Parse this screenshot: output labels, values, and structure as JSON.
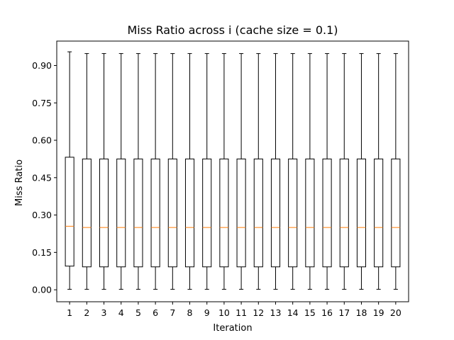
{
  "chart_data": {
    "type": "boxplot",
    "title": "Miss Ratio across i (cache size = 0.1)",
    "xlabel": "Iteration",
    "ylabel": "Miss Ratio",
    "categories": [
      "1",
      "2",
      "3",
      "4",
      "5",
      "6",
      "7",
      "8",
      "9",
      "10",
      "11",
      "12",
      "13",
      "14",
      "15",
      "16",
      "17",
      "18",
      "19",
      "20"
    ],
    "yticks": [
      "0.00",
      "0.15",
      "0.30",
      "0.45",
      "0.60",
      "0.75",
      "0.90"
    ],
    "ylim": [
      -0.048,
      0.998
    ],
    "grid": false,
    "colors": {
      "box": "#000000",
      "median": "#ff7f0e",
      "background": "#ffffff"
    },
    "boxes": [
      {
        "label": "1",
        "whislo": 0.002,
        "q1": 0.095,
        "med": 0.255,
        "q3": 0.532,
        "whishi": 0.955
      },
      {
        "label": "2",
        "whislo": 0.002,
        "q1": 0.092,
        "med": 0.25,
        "q3": 0.525,
        "whishi": 0.948
      },
      {
        "label": "3",
        "whislo": 0.002,
        "q1": 0.092,
        "med": 0.25,
        "q3": 0.525,
        "whishi": 0.948
      },
      {
        "label": "4",
        "whislo": 0.002,
        "q1": 0.092,
        "med": 0.25,
        "q3": 0.525,
        "whishi": 0.948
      },
      {
        "label": "5",
        "whislo": 0.002,
        "q1": 0.092,
        "med": 0.25,
        "q3": 0.525,
        "whishi": 0.948
      },
      {
        "label": "6",
        "whislo": 0.002,
        "q1": 0.092,
        "med": 0.25,
        "q3": 0.525,
        "whishi": 0.948
      },
      {
        "label": "7",
        "whislo": 0.002,
        "q1": 0.092,
        "med": 0.25,
        "q3": 0.525,
        "whishi": 0.948
      },
      {
        "label": "8",
        "whislo": 0.002,
        "q1": 0.092,
        "med": 0.25,
        "q3": 0.525,
        "whishi": 0.948
      },
      {
        "label": "9",
        "whislo": 0.002,
        "q1": 0.092,
        "med": 0.25,
        "q3": 0.525,
        "whishi": 0.948
      },
      {
        "label": "10",
        "whislo": 0.002,
        "q1": 0.092,
        "med": 0.25,
        "q3": 0.525,
        "whishi": 0.948
      },
      {
        "label": "11",
        "whislo": 0.002,
        "q1": 0.092,
        "med": 0.25,
        "q3": 0.525,
        "whishi": 0.948
      },
      {
        "label": "12",
        "whislo": 0.002,
        "q1": 0.092,
        "med": 0.25,
        "q3": 0.525,
        "whishi": 0.948
      },
      {
        "label": "13",
        "whislo": 0.002,
        "q1": 0.092,
        "med": 0.25,
        "q3": 0.525,
        "whishi": 0.948
      },
      {
        "label": "14",
        "whislo": 0.002,
        "q1": 0.092,
        "med": 0.25,
        "q3": 0.525,
        "whishi": 0.948
      },
      {
        "label": "15",
        "whislo": 0.002,
        "q1": 0.092,
        "med": 0.25,
        "q3": 0.525,
        "whishi": 0.948
      },
      {
        "label": "16",
        "whislo": 0.002,
        "q1": 0.092,
        "med": 0.25,
        "q3": 0.525,
        "whishi": 0.948
      },
      {
        "label": "17",
        "whislo": 0.002,
        "q1": 0.092,
        "med": 0.25,
        "q3": 0.525,
        "whishi": 0.948
      },
      {
        "label": "18",
        "whislo": 0.002,
        "q1": 0.092,
        "med": 0.25,
        "q3": 0.525,
        "whishi": 0.948
      },
      {
        "label": "19",
        "whislo": 0.002,
        "q1": 0.092,
        "med": 0.25,
        "q3": 0.525,
        "whishi": 0.948
      },
      {
        "label": "20",
        "whislo": 0.002,
        "q1": 0.092,
        "med": 0.25,
        "q3": 0.525,
        "whishi": 0.948
      }
    ]
  }
}
